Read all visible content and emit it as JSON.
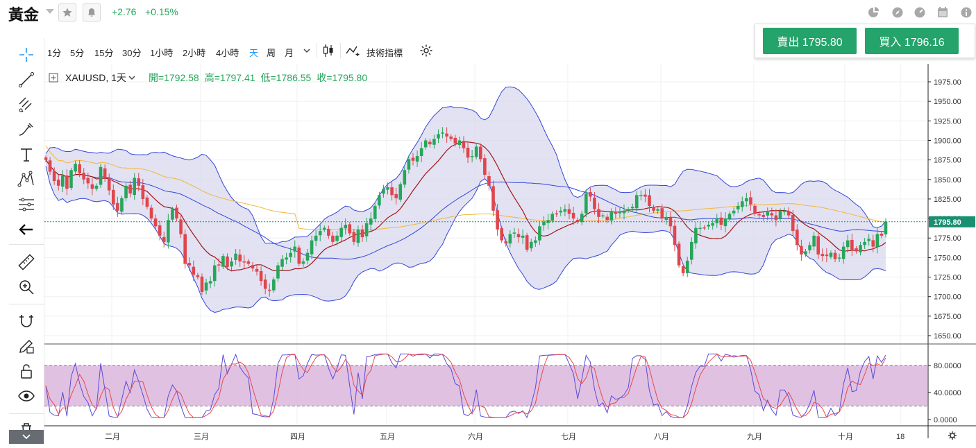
{
  "header": {
    "title": "黃金",
    "change_abs": "+2.76",
    "change_pct": "+0.15%"
  },
  "trade": {
    "sell_label": "賣出 1795.80",
    "buy_label": "買入 1796.16"
  },
  "toolbar": {
    "timeframes": [
      "1分",
      "5分",
      "15分",
      "30分",
      "1小時",
      "2小時",
      "4小時",
      "天",
      "周",
      "月"
    ],
    "active_timeframe": "天",
    "indicators_label": "技術指標"
  },
  "legend": {
    "symbol": "XAUUSD",
    "interval": "1天",
    "open": "開=1792.58",
    "high": "高=1797.41",
    "low": "低=1786.55",
    "close": "收=1795.80"
  },
  "chart_data": {
    "type": "candlestick",
    "ylim": [
      1640,
      1990
    ],
    "y_ticks": [
      "1975.00",
      "1950.00",
      "1925.00",
      "1900.00",
      "1875.00",
      "1850.00",
      "1825.00",
      "1800.00",
      "1775.00",
      "1750.00",
      "1725.00",
      "1700.00",
      "1675.00",
      "1650.00"
    ],
    "y_tick_values": [
      1975,
      1950,
      1925,
      1900,
      1875,
      1850,
      1825,
      1800,
      1775,
      1750,
      1725,
      1700,
      1675,
      1650
    ],
    "last_price_label": "1795.80",
    "last_price": 1795.8,
    "x_labels": [
      "二月",
      "三月",
      "四月",
      "五月",
      "六月",
      "七月",
      "八月",
      "九月",
      "十月",
      "18"
    ],
    "close_series": [
      1875,
      1860,
      1848,
      1842,
      1855,
      1838,
      1862,
      1870,
      1858,
      1850,
      1845,
      1838,
      1842,
      1866,
      1852,
      1836,
      1818,
      1810,
      1826,
      1842,
      1832,
      1852,
      1842,
      1825,
      1815,
      1800,
      1790,
      1778,
      1770,
      1798,
      1812,
      1800,
      1780,
      1742,
      1740,
      1728,
      1725,
      1706,
      1718,
      1720,
      1740,
      1740,
      1752,
      1738,
      1745,
      1755,
      1745,
      1744,
      1742,
      1736,
      1732,
      1720,
      1710,
      1708,
      1722,
      1740,
      1748,
      1750,
      1756,
      1764,
      1742,
      1745,
      1756,
      1772,
      1778,
      1784,
      1788,
      1778,
      1770,
      1778,
      1788,
      1792,
      1781,
      1770,
      1786,
      1776,
      1794,
      1800,
      1816,
      1830,
      1838,
      1840,
      1830,
      1826,
      1844,
      1862,
      1876,
      1874,
      1880,
      1890,
      1900,
      1895,
      1902,
      1908,
      1910,
      1905,
      1902,
      1896,
      1900,
      1890,
      1878,
      1880,
      1892,
      1876,
      1856,
      1842,
      1810,
      1786,
      1772,
      1768,
      1780,
      1782,
      1776,
      1778,
      1760,
      1770,
      1772,
      1790,
      1796,
      1798,
      1806,
      1806,
      1810,
      1812,
      1806,
      1800,
      1796,
      1806,
      1832,
      1828,
      1812,
      1802,
      1804,
      1798,
      1808,
      1806,
      1808,
      1810,
      1812,
      1815,
      1830,
      1830,
      1828,
      1816,
      1810,
      1812,
      1800,
      1802,
      1790,
      1766,
      1740,
      1730,
      1746,
      1770,
      1788,
      1788,
      1788,
      1792,
      1794,
      1800,
      1792,
      1800,
      1806,
      1810,
      1816,
      1822,
      1826,
      1818,
      1806,
      1804,
      1802,
      1808,
      1804,
      1798,
      1810,
      1810,
      1804,
      1784,
      1766,
      1754,
      1758,
      1766,
      1778,
      1754,
      1752,
      1752,
      1756,
      1748,
      1750,
      1764,
      1772,
      1760,
      1758,
      1766,
      1770,
      1774,
      1764,
      1780,
      1778,
      1796
    ],
    "rsi_ylim": [
      -5,
      100
    ],
    "rsi_ticks": [
      "80.0000",
      "40.0000",
      "0.0000"
    ],
    "rsi_tick_values": [
      80,
      40,
      0
    ],
    "rsi_band": [
      20,
      80
    ]
  },
  "colors": {
    "up": "#26a65b",
    "down": "#e0454d",
    "bb_fill": "#d8d8ee",
    "bb_line": "#3345d8",
    "ma_fast": "#a01414",
    "ma_slow": "#f0b73a",
    "rsi_band": "#dab6dd",
    "rsi_fast": "#5a4bd8",
    "rsi_slow": "#e8474f",
    "accent": "#2196f3",
    "buy": "#24a36b"
  }
}
